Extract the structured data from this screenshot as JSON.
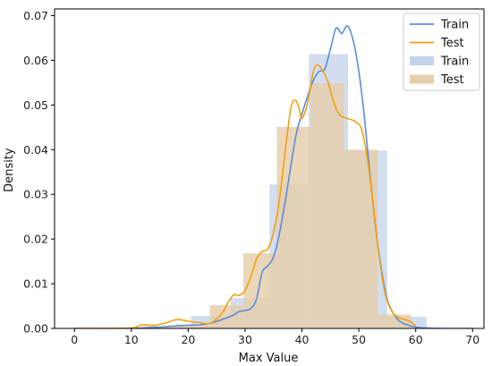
{
  "chart_data": {
    "type": "bar",
    "xlabel": "Max Value",
    "ylabel": "Density",
    "xlim": [
      -3.5,
      72
    ],
    "ylim": [
      0,
      0.0715
    ],
    "xticks": [
      0,
      10,
      20,
      30,
      40,
      50,
      60,
      70
    ],
    "yticks": [
      0.0,
      0.01,
      0.02,
      0.03,
      0.04,
      0.05,
      0.06,
      0.07
    ],
    "ytick_labels": [
      "0.00",
      "0.01",
      "0.02",
      "0.03",
      "0.04",
      "0.05",
      "0.06",
      "0.07"
    ],
    "legend_position": "top-right",
    "colors": {
      "train": "#5b8ddb",
      "test": "#f5a00d",
      "train_hist": "#c3d3ea",
      "test_hist": "#e6cfad"
    },
    "histograms": [
      {
        "name": "Train",
        "bin_edges": [
          20.5,
          27.4,
          34.3,
          41.2,
          48.1,
          55.0,
          61.9
        ],
        "values": [
          0.0028,
          0.0068,
          0.0322,
          0.0614,
          0.0398,
          0.0026
        ]
      },
      {
        "name": "Test",
        "bin_edges": [
          12.0,
          17.9,
          23.8,
          29.7,
          35.6,
          41.5,
          47.4,
          53.3,
          59.2
        ],
        "values": [
          0.0005,
          0.0009,
          0.0052,
          0.0168,
          0.0451,
          0.0549,
          0.04,
          0.0031
        ]
      }
    ],
    "series": [
      {
        "name": "Train",
        "x": [
          0,
          5,
          10,
          15,
          17,
          20,
          22,
          24,
          26,
          28,
          29,
          30,
          31,
          32,
          33,
          34,
          35,
          36,
          37,
          38,
          39,
          40,
          41,
          42,
          43,
          44,
          45,
          46,
          47,
          48,
          49,
          50,
          51,
          52,
          53,
          54,
          55,
          56,
          57,
          58,
          60,
          62,
          65,
          70
        ],
        "y": [
          0,
          0,
          0,
          0.0003,
          0.0005,
          0.0007,
          0.0008,
          0.0012,
          0.002,
          0.003,
          0.0038,
          0.004,
          0.0045,
          0.0065,
          0.0125,
          0.014,
          0.016,
          0.021,
          0.028,
          0.036,
          0.0435,
          0.048,
          0.052,
          0.0555,
          0.0575,
          0.058,
          0.0625,
          0.0672,
          0.066,
          0.0677,
          0.0645,
          0.0575,
          0.047,
          0.034,
          0.022,
          0.013,
          0.0065,
          0.0035,
          0.0018,
          0.001,
          0.0003,
          0.0001,
          0,
          0
        ]
      },
      {
        "name": "Test",
        "x": [
          0,
          5,
          10,
          11,
          12,
          14,
          16,
          18,
          20,
          22,
          24,
          26,
          27,
          28,
          29,
          30,
          31,
          32,
          33,
          34,
          35,
          36,
          37,
          38,
          38.8,
          39.5,
          40,
          41,
          42,
          42.7,
          43.5,
          44.5,
          45.5,
          46.5,
          47.5,
          48.5,
          49.5,
          50.5,
          51.5,
          52.5,
          53.5,
          54.5,
          55.5,
          56.5,
          57.5,
          59,
          60
        ],
        "y": [
          0,
          0,
          0.0001,
          0.0004,
          0.0008,
          0.0007,
          0.0012,
          0.002,
          0.0016,
          0.0013,
          0.0012,
          0.0035,
          0.0058,
          0.0075,
          0.0074,
          0.0085,
          0.0115,
          0.0155,
          0.0172,
          0.0178,
          0.0215,
          0.0285,
          0.039,
          0.049,
          0.0511,
          0.0492,
          0.047,
          0.0505,
          0.0575,
          0.059,
          0.058,
          0.0555,
          0.051,
          0.048,
          0.0472,
          0.0468,
          0.0462,
          0.0445,
          0.038,
          0.028,
          0.017,
          0.0085,
          0.0045,
          0.0028,
          0.0022,
          0.0016,
          0.0005
        ]
      }
    ],
    "legend": [
      "Train",
      "Test",
      "Train",
      "Test"
    ]
  }
}
